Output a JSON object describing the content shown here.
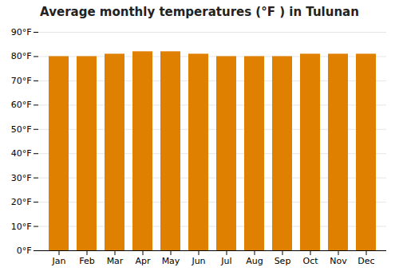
{
  "chart_data": {
    "type": "bar",
    "title": "Average monthly temperatures (°F ) in Tulunan",
    "categories": [
      "Jan",
      "Feb",
      "Mar",
      "Apr",
      "May",
      "Jun",
      "Jul",
      "Aug",
      "Sep",
      "Oct",
      "Nov",
      "Dec"
    ],
    "values": [
      80,
      80,
      81,
      82,
      82,
      81,
      80,
      80,
      80,
      81,
      81,
      81
    ],
    "color": "#E08000",
    "ylim": [
      0,
      90
    ],
    "yticks": [
      {
        "value": 0,
        "label": "0°F"
      },
      {
        "value": 10,
        "label": "10°F"
      },
      {
        "value": 20,
        "label": "20°F"
      },
      {
        "value": 30,
        "label": "30°F"
      },
      {
        "value": 40,
        "label": "40°F"
      },
      {
        "value": 50,
        "label": "50°F"
      },
      {
        "value": 60,
        "label": "60°F"
      },
      {
        "value": 70,
        "label": "70°F"
      },
      {
        "value": 80,
        "label": "80°F"
      },
      {
        "value": 90,
        "label": "90°F"
      }
    ],
    "grid": true
  }
}
